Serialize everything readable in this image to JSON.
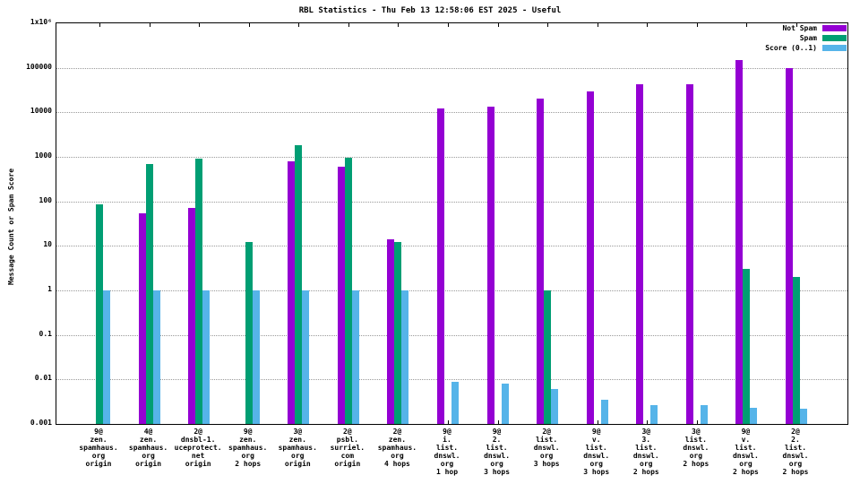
{
  "chart_data": {
    "type": "bar",
    "scale": "log-y",
    "title": "RBL Statistics - Thu Feb 13 12:58:06 EST 2025 - Useful",
    "ylabel": "Message Count or Spam Score",
    "ylim": [
      0.001,
      1000000
    ],
    "ytick_labels": [
      "1x10⁶",
      "100000",
      "10000",
      "1000",
      "100",
      "10",
      "1",
      "0.1",
      "0.01",
      "0.001"
    ],
    "grid": true,
    "legend_position": "top-right",
    "categories": [
      [
        "9@",
        "zen.",
        "spamhaus.",
        "org",
        "origin"
      ],
      [
        "4@",
        "zen.",
        "spamhaus.",
        "org",
        "origin"
      ],
      [
        "2@",
        "dnsbl-1.",
        "uceprotect.",
        "net",
        "origin"
      ],
      [
        "9@",
        "zen.",
        "spamhaus.",
        "org",
        "2 hops"
      ],
      [
        "3@",
        "zen.",
        "spamhaus.",
        "org",
        "origin"
      ],
      [
        "2@",
        "psbl.",
        "surriel.",
        "com",
        "origin"
      ],
      [
        "2@",
        "zen.",
        "spamhaus.",
        "org",
        "4 hops"
      ],
      [
        "9@",
        "i.",
        "list.",
        "dnswl.",
        "org",
        "1 hop"
      ],
      [
        "9@",
        "2.",
        "list.",
        "dnswl.",
        "org",
        "3 hops"
      ],
      [
        "2@",
        "list.",
        "dnswl.",
        "org",
        "3 hops"
      ],
      [
        "9@",
        "v.",
        "list.",
        "dnswl.",
        "org",
        "3 hops"
      ],
      [
        "3@",
        "3.",
        "list.",
        "dnswl.",
        "org",
        "2 hops"
      ],
      [
        "3@",
        "list.",
        "dnswl.",
        "org",
        "2 hops"
      ],
      [
        "9@",
        "v.",
        "list.",
        "dnswl.",
        "org",
        "2 hops"
      ],
      [
        "2@",
        "2.",
        "list.",
        "dnswl.",
        "org",
        "2 hops"
      ]
    ],
    "series": [
      {
        "name": "Not Spam",
        "color": "#9400d3",
        "values": [
          null,
          55,
          70,
          null,
          800,
          600,
          14,
          12000,
          13500,
          20000,
          30000,
          42000,
          42000,
          150000,
          100000
        ]
      },
      {
        "name": "Spam",
        "color": "#009e73",
        "values": [
          85,
          700,
          900,
          12,
          1800,
          950,
          12,
          null,
          null,
          1,
          null,
          null,
          null,
          3,
          2
        ]
      },
      {
        "name": "Score (0..1)",
        "color": "#56b4e9",
        "values": [
          1,
          1,
          1,
          1,
          1,
          1,
          1,
          0.009,
          0.008,
          0.006,
          0.0035,
          0.0027,
          0.0027,
          0.0023,
          0.0022
        ]
      }
    ]
  }
}
